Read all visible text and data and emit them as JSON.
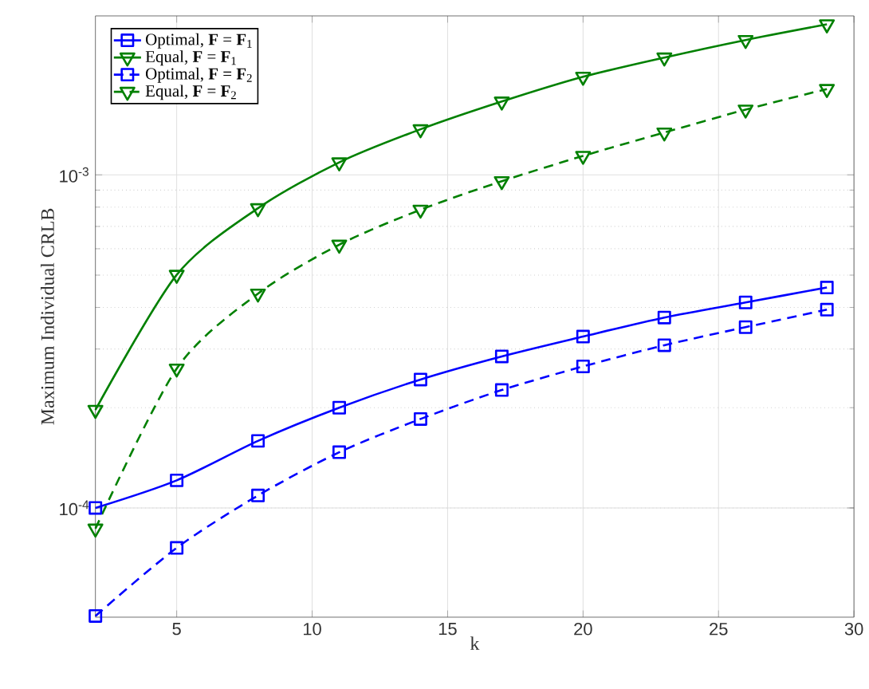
{
  "chart_data": {
    "type": "line",
    "xlabel": "k",
    "ylabel": "Maximum Individual CRLB",
    "log": "y",
    "grid": true,
    "legend": "top left",
    "xlim": [
      2,
      30
    ],
    "xticks": [
      5,
      10,
      15,
      20,
      25,
      30
    ],
    "ylim": [
      4.7e-05,
      0.003
    ],
    "yticks": [
      {
        "value": 0.0001,
        "label": "10$^{-4}$"
      },
      {
        "value": 0.001,
        "label": "10$^{-3}$"
      }
    ],
    "x": [
      2,
      5,
      8,
      11,
      14,
      17,
      20,
      23,
      26,
      29
    ],
    "series": [
      {
        "name": "Optimal, **F** = **F**$_{1}$",
        "color": "#0000ff",
        "marker": "square",
        "line_style": "solid",
        "values": [
          0.0001,
          0.000121,
          0.000159,
          0.0002,
          0.000243,
          0.000285,
          0.000327,
          0.000373,
          0.000414,
          0.000459
        ]
      },
      {
        "name": "Equal, **F** = **F**$_{1}$",
        "color": "#008000",
        "marker": "triangle",
        "line_style": "solid",
        "values": [
          0.000197,
          0.000501,
          0.000794,
          0.00109,
          0.00137,
          0.00166,
          0.00197,
          0.00225,
          0.00254,
          0.00283
        ]
      },
      {
        "name": "Optimal, **F** = **F**$_{2}$",
        "color": "#0000ff",
        "marker": "square",
        "line_style": "dashed",
        "values": [
          4.74e-05,
          7.59e-05,
          0.000109,
          0.000147,
          0.000185,
          0.000226,
          0.000266,
          0.000308,
          0.000349,
          0.000394
        ]
      },
      {
        "name": "Equal, **F** = **F**$_{2}$",
        "color": "#008000",
        "marker": "triangle",
        "line_style": "dashed",
        "values": [
          8.67e-05,
          0.000262,
          0.00044,
          0.000617,
          0.000786,
          0.000957,
          0.00114,
          0.00134,
          0.00157,
          0.00181
        ]
      }
    ]
  }
}
